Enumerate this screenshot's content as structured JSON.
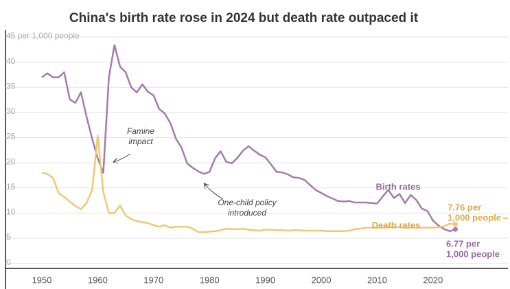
{
  "chart_data": {
    "type": "line",
    "title": "China's birth rate rose in 2024 but death rate outpaced it",
    "x": [
      1950,
      1951,
      1952,
      1953,
      1954,
      1955,
      1956,
      1957,
      1958,
      1959,
      1960,
      1961,
      1962,
      1963,
      1964,
      1965,
      1966,
      1967,
      1968,
      1969,
      1970,
      1971,
      1972,
      1973,
      1974,
      1975,
      1976,
      1977,
      1978,
      1979,
      1980,
      1981,
      1982,
      1983,
      1984,
      1985,
      1986,
      1987,
      1988,
      1989,
      1990,
      1991,
      1992,
      1993,
      1994,
      1995,
      1996,
      1997,
      1998,
      1999,
      2000,
      2001,
      2002,
      2003,
      2004,
      2005,
      2006,
      2007,
      2008,
      2009,
      2010,
      2011,
      2012,
      2013,
      2014,
      2015,
      2016,
      2017,
      2018,
      2019,
      2020,
      2021,
      2022,
      2023,
      2024
    ],
    "series": [
      {
        "name": "Birth rates",
        "color": "#a67aab",
        "label_color": "#9a6aa0",
        "end_label": [
          "6.77 per",
          "1,000 people"
        ],
        "values": [
          37,
          37.8,
          37,
          37,
          38,
          32.6,
          31.9,
          34,
          29.2,
          24.8,
          20.9,
          18,
          37,
          43.4,
          39.1,
          38,
          35,
          34,
          35.6,
          34.1,
          33.4,
          30.7,
          29.8,
          27.9,
          24.8,
          23,
          19.9,
          19,
          18.3,
          17.8,
          18.2,
          20.9,
          22.3,
          20.2,
          19.9,
          21,
          22.4,
          23.3,
          22.4,
          21.6,
          21.1,
          19.7,
          18.2,
          18.1,
          17.7,
          17.1,
          17,
          16.6,
          15.6,
          14.6,
          14,
          13.4,
          12.9,
          12.4,
          12.3,
          12.4,
          12.1,
          12.1,
          12.1,
          12,
          11.9,
          13.3,
          14.6,
          13,
          13.8,
          12,
          13.6,
          12.6,
          10.9,
          10.4,
          8.5,
          7.5,
          6.8,
          6.4,
          6.77
        ]
      },
      {
        "name": "Death rates",
        "color": "#efc873",
        "label_color": "#dcaa48",
        "end_label": [
          "7.76 per",
          "1,000 people"
        ],
        "values": [
          18,
          17.8,
          17,
          14,
          13.2,
          12.3,
          11.4,
          10.8,
          12,
          14.6,
          25.4,
          14.2,
          10,
          10,
          11.5,
          9.5,
          8.8,
          8.4,
          8.2,
          8,
          7.6,
          7.3,
          7.6,
          7.1,
          7.3,
          7.3,
          7.3,
          6.9,
          6.2,
          6.2,
          6.3,
          6.4,
          6.6,
          6.9,
          6.8,
          6.8,
          6.9,
          6.7,
          6.6,
          6.5,
          6.7,
          6.7,
          6.6,
          6.6,
          6.5,
          6.6,
          6.6,
          6.5,
          6.5,
          6.5,
          6.5,
          6.4,
          6.4,
          6.4,
          6.4,
          6.5,
          6.8,
          6.9,
          7.1,
          7.1,
          7.1,
          7.1,
          7.2,
          7.2,
          7.2,
          7.1,
          7.1,
          7.1,
          7.1,
          7.1,
          7.1,
          7.2,
          7.4,
          7.9,
          7.76
        ]
      }
    ],
    "annotations": [
      {
        "lines": [
          "Famine",
          "impact"
        ]
      },
      {
        "lines": [
          "One-child policy",
          "introduced"
        ]
      }
    ],
    "xlim": [
      1943.5,
      2033.4
    ],
    "xticks": [
      1950,
      1960,
      1970,
      1980,
      1990,
      2000,
      2010,
      2020
    ],
    "ylim": [
      -1,
      45
    ],
    "yticks": [
      0,
      5,
      10,
      15,
      20,
      25,
      30,
      35,
      40,
      {
        "value": 45,
        "label": "45 per 1,000 people"
      }
    ],
    "grid": true
  }
}
